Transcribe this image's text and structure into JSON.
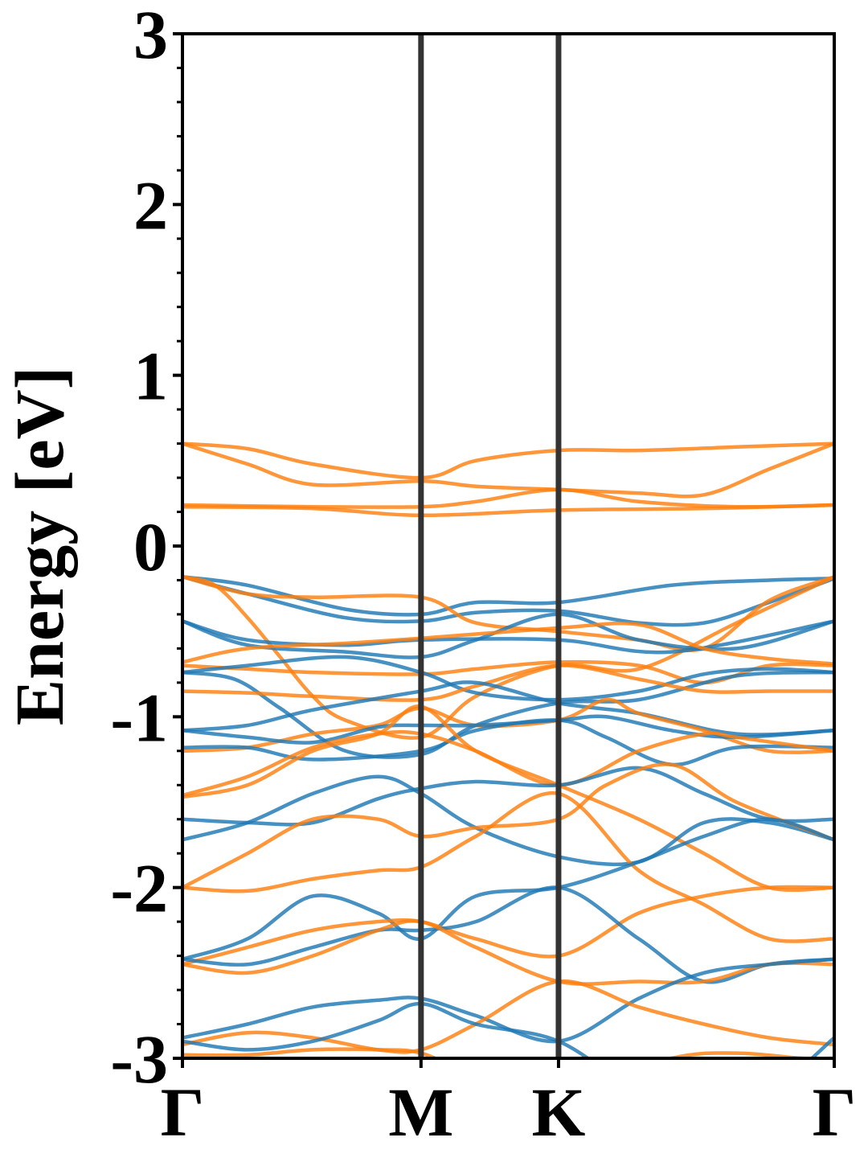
{
  "chart_data": {
    "type": "line",
    "title": "",
    "ylabel": "Energy [eV]",
    "xlabel": "",
    "ylim": [
      -3,
      3
    ],
    "xlim": [
      0,
      1
    ],
    "yticks": [
      {
        "value": 3,
        "label": "3"
      },
      {
        "value": 2,
        "label": "2"
      },
      {
        "value": 1,
        "label": "1"
      },
      {
        "value": 0,
        "label": "0"
      },
      {
        "value": -1,
        "label": "-1"
      },
      {
        "value": -2,
        "label": "-2"
      },
      {
        "value": -3,
        "label": "-3"
      }
    ],
    "xticks": [
      {
        "value": 0.0,
        "label": "Γ"
      },
      {
        "value": 0.366,
        "label": "M"
      },
      {
        "value": 0.577,
        "label": "K"
      },
      {
        "value": 1.0,
        "label": "Γ"
      }
    ],
    "high_symmetry_lines": [
      0.366,
      0.577
    ],
    "colors": {
      "spin_a": "#1f77b4",
      "spin_b": "#ff7f0e",
      "divider": "#333333"
    },
    "grid": false,
    "series": [
      {
        "color": "#ff7f0e",
        "x": [
          0,
          0.1,
          0.2,
          0.366,
          0.45,
          0.577,
          0.7,
          0.85,
          1.0
        ],
        "y": [
          0.6,
          0.57,
          0.48,
          0.4,
          0.5,
          0.56,
          0.56,
          0.58,
          0.6
        ]
      },
      {
        "color": "#ff7f0e",
        "x": [
          0,
          0.1,
          0.2,
          0.366,
          0.45,
          0.577,
          0.7,
          0.8,
          0.9,
          1.0
        ],
        "y": [
          0.6,
          0.48,
          0.36,
          0.38,
          0.35,
          0.33,
          0.31,
          0.3,
          0.45,
          0.6
        ]
      },
      {
        "color": "#ff7f0e",
        "x": [
          0,
          0.2,
          0.366,
          0.45,
          0.577,
          0.7,
          0.85,
          1.0
        ],
        "y": [
          0.24,
          0.23,
          0.23,
          0.26,
          0.33,
          0.26,
          0.23,
          0.24
        ]
      },
      {
        "color": "#ff7f0e",
        "x": [
          0,
          0.2,
          0.366,
          0.577,
          0.8,
          1.0
        ],
        "y": [
          0.23,
          0.22,
          0.18,
          0.21,
          0.22,
          0.24
        ]
      },
      {
        "color": "#1f77b4",
        "x": [
          0,
          0.1,
          0.25,
          0.366,
          0.45,
          0.577,
          0.75,
          0.9,
          1.0
        ],
        "y": [
          -0.18,
          -0.23,
          -0.37,
          -0.4,
          -0.33,
          -0.33,
          -0.23,
          -0.2,
          -0.19
        ]
      },
      {
        "color": "#1f77b4",
        "x": [
          0,
          0.1,
          0.25,
          0.366,
          0.45,
          0.577,
          0.7,
          0.8,
          0.9,
          1.0
        ],
        "y": [
          -0.18,
          -0.28,
          -0.42,
          -0.44,
          -0.39,
          -0.38,
          -0.45,
          -0.45,
          -0.33,
          -0.19
        ]
      },
      {
        "color": "#ff7f0e",
        "x": [
          0,
          0.05,
          0.1,
          0.15,
          0.2,
          0.25,
          0.366,
          0.45,
          0.577,
          0.7,
          0.85,
          1.0
        ],
        "y": [
          -0.18,
          -0.23,
          -0.42,
          -0.65,
          -0.88,
          -1.02,
          -1.12,
          -0.88,
          -0.7,
          -0.72,
          -0.45,
          -0.18
        ]
      },
      {
        "color": "#ff7f0e",
        "x": [
          0,
          0.1,
          0.2,
          0.366,
          0.45,
          0.577,
          0.7,
          0.8,
          0.9,
          1.0
        ],
        "y": [
          -0.18,
          -0.28,
          -0.3,
          -0.3,
          -0.45,
          -0.5,
          -0.55,
          -0.6,
          -0.32,
          -0.18
        ]
      },
      {
        "color": "#1f77b4",
        "x": [
          0,
          0.1,
          0.25,
          0.366,
          0.577,
          0.75,
          1.0
        ],
        "y": [
          -0.44,
          -0.55,
          -0.58,
          -0.55,
          -0.55,
          -0.62,
          -0.44
        ]
      },
      {
        "color": "#1f77b4",
        "x": [
          0,
          0.1,
          0.25,
          0.366,
          0.45,
          0.577,
          0.7,
          0.85,
          1.0
        ],
        "y": [
          -0.44,
          -0.58,
          -0.62,
          -0.65,
          -0.55,
          -0.4,
          -0.55,
          -0.6,
          -0.44
        ]
      },
      {
        "color": "#ff7f0e",
        "x": [
          0,
          0.1,
          0.25,
          0.366,
          0.577,
          0.7,
          0.8,
          0.9,
          1.0
        ],
        "y": [
          -0.68,
          -0.6,
          -0.57,
          -0.54,
          -0.48,
          -0.46,
          -0.6,
          -0.66,
          -0.69
        ]
      },
      {
        "color": "#ff7f0e",
        "x": [
          0,
          0.1,
          0.2,
          0.366,
          0.45,
          0.577,
          0.7,
          0.8,
          0.9,
          1.0
        ],
        "y": [
          -0.7,
          -0.72,
          -0.74,
          -0.75,
          -0.72,
          -0.68,
          -0.7,
          -0.8,
          -0.7,
          -0.7
        ]
      },
      {
        "color": "#1f77b4",
        "x": [
          0,
          0.1,
          0.25,
          0.366,
          0.45,
          0.577,
          0.7,
          0.8,
          0.9,
          1.0
        ],
        "y": [
          -0.74,
          -0.7,
          -0.65,
          -0.74,
          -0.86,
          -0.9,
          -0.85,
          -0.75,
          -0.72,
          -0.74
        ]
      },
      {
        "color": "#1f77b4",
        "x": [
          0,
          0.08,
          0.15,
          0.25,
          0.366,
          0.45,
          0.577,
          0.7,
          0.85,
          1.0
        ],
        "y": [
          -0.74,
          -0.78,
          -0.95,
          -1.2,
          -1.22,
          -1.05,
          -0.92,
          -0.9,
          -0.76,
          -0.74
        ]
      },
      {
        "color": "#ff7f0e",
        "x": [
          0,
          0.1,
          0.2,
          0.366,
          0.45,
          0.577,
          0.7,
          0.8,
          0.9,
          1.0
        ],
        "y": [
          -0.85,
          -0.86,
          -0.88,
          -0.9,
          -0.82,
          -0.7,
          -0.78,
          -0.85,
          -0.85,
          -0.85
        ]
      },
      {
        "color": "#1f77b4",
        "x": [
          0,
          0.1,
          0.2,
          0.366,
          0.45,
          0.577,
          0.7,
          0.85,
          1.0
        ],
        "y": [
          -1.08,
          -1.05,
          -0.96,
          -0.85,
          -0.8,
          -0.92,
          -0.98,
          -1.1,
          -1.08
        ]
      },
      {
        "color": "#ff7f0e",
        "x": [
          0,
          0.1,
          0.2,
          0.3,
          0.366,
          0.45,
          0.577,
          0.65,
          0.7,
          0.8,
          0.9,
          1.0
        ],
        "y": [
          -1.2,
          -1.18,
          -1.1,
          -1.05,
          -0.95,
          -1.05,
          -1.02,
          -0.9,
          -0.98,
          -1.08,
          -1.2,
          -1.2
        ]
      },
      {
        "color": "#1f77b4",
        "x": [
          0,
          0.1,
          0.2,
          0.3,
          0.366,
          0.45,
          0.577,
          0.65,
          0.75,
          0.85,
          1.0
        ],
        "y": [
          -1.08,
          -1.12,
          -1.15,
          -1.06,
          -1.05,
          -1.05,
          -1.02,
          -1.0,
          -1.08,
          -1.12,
          -1.08
        ]
      },
      {
        "color": "#1f77b4",
        "x": [
          0,
          0.1,
          0.2,
          0.366,
          0.45,
          0.577,
          0.65,
          0.75,
          0.85,
          1.0
        ],
        "y": [
          -1.18,
          -1.18,
          -1.25,
          -1.2,
          -1.08,
          -1.02,
          -1.12,
          -1.28,
          -1.18,
          -1.18
        ]
      },
      {
        "color": "#ff7f0e",
        "x": [
          0,
          0.1,
          0.2,
          0.3,
          0.366,
          0.45,
          0.577,
          0.7,
          0.8,
          0.85,
          1.0
        ],
        "y": [
          -1.46,
          -1.35,
          -1.18,
          -1.1,
          -1.1,
          -1.2,
          -1.4,
          -1.2,
          -1.1,
          -1.12,
          -1.2
        ]
      },
      {
        "color": "#ff7f0e",
        "x": [
          0,
          0.1,
          0.2,
          0.3,
          0.366,
          0.45,
          0.577,
          0.7,
          0.8,
          0.9,
          1.0
        ],
        "y": [
          -1.47,
          -1.4,
          -1.2,
          -1.1,
          -0.94,
          -1.2,
          -1.4,
          -1.6,
          -1.8,
          -2.0,
          -2.0
        ]
      },
      {
        "color": "#1f77b4",
        "x": [
          0,
          0.1,
          0.2,
          0.3,
          0.366,
          0.45,
          0.577,
          0.7,
          0.8,
          0.9,
          1.0
        ],
        "y": [
          -1.6,
          -1.62,
          -1.62,
          -1.48,
          -1.42,
          -1.38,
          -1.4,
          -1.3,
          -1.45,
          -1.6,
          -1.6
        ]
      },
      {
        "color": "#1f77b4",
        "x": [
          0,
          0.1,
          0.2,
          0.3,
          0.366,
          0.45,
          0.577,
          0.7,
          0.8,
          0.9,
          1.0
        ],
        "y": [
          -1.72,
          -1.62,
          -1.45,
          -1.35,
          -1.45,
          -1.65,
          -1.82,
          -1.85,
          -1.62,
          -1.62,
          -1.72
        ]
      },
      {
        "color": "#ff7f0e",
        "x": [
          0,
          0.1,
          0.2,
          0.3,
          0.366,
          0.45,
          0.577,
          0.65,
          0.75,
          0.85,
          1.0
        ],
        "y": [
          -2.0,
          -1.8,
          -1.6,
          -1.6,
          -1.7,
          -1.65,
          -1.6,
          -1.4,
          -1.28,
          -1.5,
          -1.72
        ]
      },
      {
        "color": "#ff7f0e",
        "x": [
          0,
          0.1,
          0.2,
          0.3,
          0.366,
          0.45,
          0.577,
          0.7,
          0.8,
          0.9,
          1.0
        ],
        "y": [
          -2.0,
          -2.02,
          -1.95,
          -1.9,
          -1.88,
          -1.7,
          -1.45,
          -1.9,
          -2.1,
          -2.3,
          -2.3
        ]
      },
      {
        "color": "#1f77b4",
        "x": [
          0,
          0.1,
          0.2,
          0.3,
          0.366,
          0.45,
          0.577,
          0.7,
          0.8,
          0.9,
          1.0
        ],
        "y": [
          -2.42,
          -2.3,
          -2.05,
          -2.15,
          -2.3,
          -2.05,
          -2.0,
          -1.85,
          -1.7,
          -1.6,
          -1.72
        ]
      },
      {
        "color": "#ff7f0e",
        "x": [
          0,
          0.1,
          0.2,
          0.3,
          0.366,
          0.45,
          0.577,
          0.7,
          0.8,
          0.9,
          1.0
        ],
        "y": [
          -2.45,
          -2.35,
          -2.25,
          -2.2,
          -2.2,
          -2.3,
          -2.4,
          -2.15,
          -2.05,
          -2.0,
          -2.0
        ]
      },
      {
        "color": "#1f77b4",
        "x": [
          0,
          0.1,
          0.2,
          0.3,
          0.366,
          0.45,
          0.577,
          0.7,
          0.8,
          0.9,
          1.0
        ],
        "y": [
          -2.42,
          -2.45,
          -2.35,
          -2.25,
          -2.25,
          -2.2,
          -2.0,
          -2.3,
          -2.55,
          -2.45,
          -2.42
        ]
      },
      {
        "color": "#ff7f0e",
        "x": [
          0,
          0.1,
          0.2,
          0.3,
          0.366,
          0.45,
          0.577,
          0.7,
          0.8,
          0.9,
          1.0
        ],
        "y": [
          -2.45,
          -2.5,
          -2.4,
          -2.25,
          -2.2,
          -2.35,
          -2.55,
          -2.55,
          -2.55,
          -2.45,
          -2.45
        ]
      },
      {
        "color": "#1f77b4",
        "x": [
          0,
          0.1,
          0.2,
          0.3,
          0.366,
          0.45,
          0.577,
          0.7,
          0.8,
          0.9,
          1.0
        ],
        "y": [
          -2.88,
          -2.8,
          -2.7,
          -2.66,
          -2.65,
          -2.75,
          -2.9,
          -2.65,
          -2.5,
          -2.45,
          -2.42
        ]
      },
      {
        "color": "#ff7f0e",
        "x": [
          0,
          0.1,
          0.2,
          0.3,
          0.366,
          0.45,
          0.577,
          0.7,
          0.8,
          0.9,
          1.0
        ],
        "y": [
          -2.92,
          -2.85,
          -2.88,
          -2.95,
          -2.95,
          -2.8,
          -2.55,
          -2.7,
          -2.8,
          -2.88,
          -2.92
        ]
      },
      {
        "color": "#1f77b4",
        "x": [
          0,
          0.1,
          0.2,
          0.3,
          0.366,
          0.45,
          0.577,
          0.7,
          0.8,
          0.9,
          1.0
        ],
        "y": [
          -2.9,
          -2.95,
          -2.9,
          -2.78,
          -2.68,
          -2.8,
          -2.9,
          -3.2,
          -3.3,
          -3.2,
          -2.88
        ]
      },
      {
        "color": "#ff7f0e",
        "x": [
          0,
          0.1,
          0.2,
          0.3,
          0.366,
          0.45,
          0.577,
          0.75,
          0.85,
          0.95,
          1.0
        ],
        "y": [
          -2.98,
          -2.98,
          -2.95,
          -2.95,
          -2.97,
          -3.1,
          -3.2,
          -3.0,
          -2.97,
          -3.0,
          -3.0
        ]
      }
    ]
  }
}
